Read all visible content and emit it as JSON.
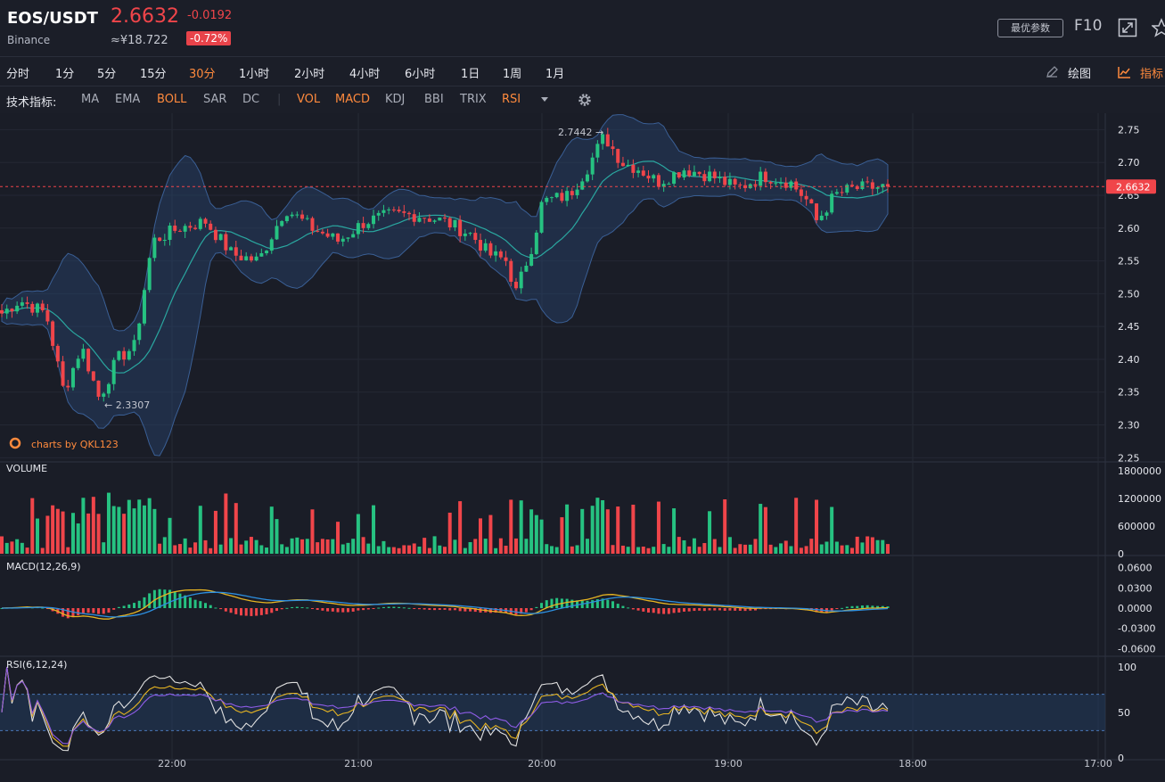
{
  "header": {
    "symbol": "EOS/USDT",
    "exchange": "Binance",
    "price": "2.6632",
    "change": "-0.0192",
    "cny_price": "≈¥18.722",
    "change_pct": "-0.72%",
    "best_params_label": "最优参数",
    "f10_label": "F10"
  },
  "timeframes": [
    "分时",
    "1分",
    "5分",
    "15分",
    "30分",
    "1小时",
    "2小时",
    "4小时",
    "6小时",
    "1日",
    "1周",
    "1月"
  ],
  "active_timeframe": "30分",
  "toolbar": {
    "draw_label": "绘图",
    "indicator_label": "指标"
  },
  "indicators": {
    "label": "技术指标:",
    "main": [
      {
        "name": "MA",
        "on": false
      },
      {
        "name": "EMA",
        "on": false
      },
      {
        "name": "BOLL",
        "on": true
      },
      {
        "name": "SAR",
        "on": false
      },
      {
        "name": "DC",
        "on": false
      }
    ],
    "sub": [
      {
        "name": "VOL",
        "on": true
      },
      {
        "name": "MACD",
        "on": true
      },
      {
        "name": "KDJ",
        "on": false
      },
      {
        "name": "BBI",
        "on": false
      },
      {
        "name": "TRIX",
        "on": false
      },
      {
        "name": "RSI",
        "on": true
      }
    ],
    "more_icon": "caret-down-icon",
    "settings_icon": "gear-icon"
  },
  "chart_data": {
    "type": "candlestick",
    "main": {
      "y_ticks": [
        "2.75",
        "2.70",
        "2.65",
        "2.60",
        "2.55",
        "2.50",
        "2.45",
        "2.40",
        "2.35",
        "2.30",
        "2.25"
      ],
      "ylim": [
        2.245,
        2.775
      ],
      "current_price_label": "2.6632",
      "current_price": 2.6632,
      "high_annotation": "2.7442",
      "low_annotation": "2.3307",
      "watermark": "charts by QKL123",
      "overlay": "BOLL",
      "price_path": [
        [
          0,
          2.47
        ],
        [
          0.02,
          2.49
        ],
        [
          0.05,
          2.47
        ],
        [
          0.07,
          2.35
        ],
        [
          0.09,
          2.42
        ],
        [
          0.11,
          2.34
        ],
        [
          0.13,
          2.4
        ],
        [
          0.15,
          2.42
        ],
        [
          0.17,
          2.58
        ],
        [
          0.2,
          2.6
        ],
        [
          0.23,
          2.61
        ],
        [
          0.26,
          2.56
        ],
        [
          0.29,
          2.55
        ],
        [
          0.32,
          2.63
        ],
        [
          0.35,
          2.6
        ],
        [
          0.38,
          2.58
        ],
        [
          0.41,
          2.61
        ],
        [
          0.44,
          2.62
        ],
        [
          0.47,
          2.62
        ],
        [
          0.5,
          2.61
        ],
        [
          0.53,
          2.59
        ],
        [
          0.55,
          2.56
        ],
        [
          0.57,
          2.55
        ],
        [
          0.58,
          2.5
        ],
        [
          0.6,
          2.58
        ],
        [
          0.61,
          2.64
        ],
        [
          0.64,
          2.65
        ],
        [
          0.66,
          2.69
        ],
        [
          0.68,
          2.74
        ],
        [
          0.7,
          2.7
        ],
        [
          0.72,
          2.69
        ],
        [
          0.74,
          2.67
        ],
        [
          0.77,
          2.69
        ],
        [
          0.8,
          2.68
        ],
        [
          0.83,
          2.66
        ],
        [
          0.86,
          2.68
        ],
        [
          0.89,
          2.67
        ],
        [
          0.91,
          2.64
        ],
        [
          0.92,
          2.61
        ],
        [
          0.94,
          2.65
        ],
        [
          0.96,
          2.66
        ],
        [
          1,
          2.663
        ]
      ]
    },
    "volume": {
      "title": "VOLUME",
      "y_ticks": [
        "1800000",
        "1200000",
        "600000",
        "0"
      ],
      "ymax": 1800000
    },
    "macd": {
      "title": "MACD(12,26,9)",
      "y_ticks": [
        "0.0600",
        "0.0300",
        "0.0000",
        "-0.0300",
        "-0.0600"
      ],
      "ylim": [
        -0.07,
        0.07
      ]
    },
    "rsi": {
      "title": "RSI(6,12,24)",
      "y_ticks": [
        "100",
        "50",
        "0"
      ],
      "upper": 70,
      "lower": 30
    },
    "x_ticks": [
      "22:00",
      "21:00",
      "20:00",
      "19:00",
      "18:00",
      "17:00"
    ],
    "colors": {
      "up": "#26c281",
      "down": "#f0454a",
      "boll_band": "#28456e",
      "boll_mid": "#2aa7a0",
      "macd_dif": "#2d8fe0",
      "macd_dea": "#e6b422",
      "rsi6": "#e0e0e0",
      "rsi12": "#e6b422",
      "rsi24": "#8e5ce6"
    }
  }
}
